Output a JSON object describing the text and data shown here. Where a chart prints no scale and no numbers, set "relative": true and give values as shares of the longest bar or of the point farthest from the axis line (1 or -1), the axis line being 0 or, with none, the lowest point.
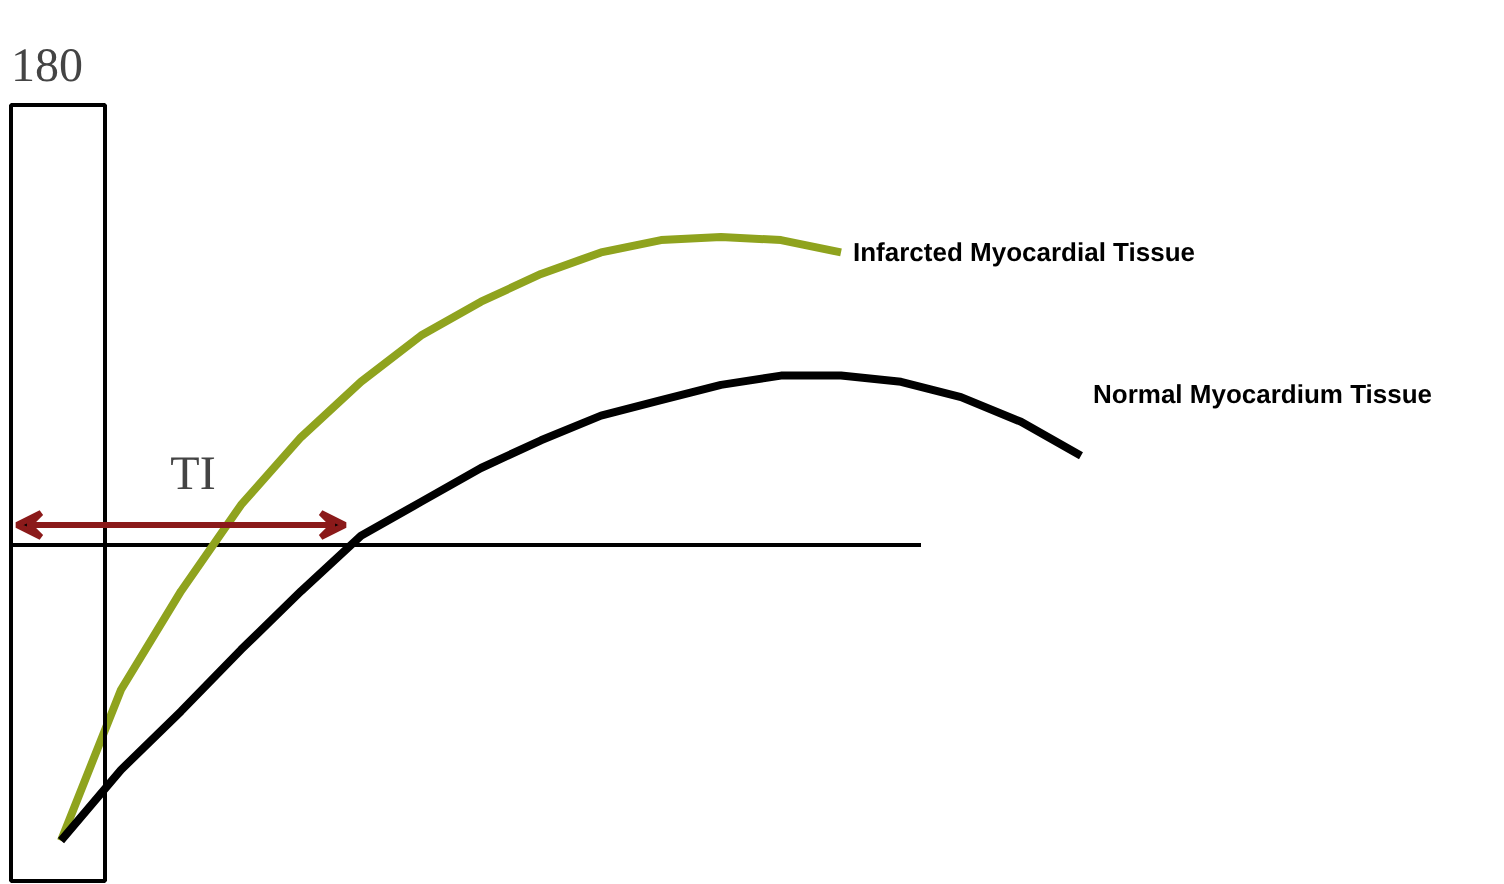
{
  "chart_data": {
    "type": "line",
    "relative": true,
    "categories": [
      null,
      null,
      null,
      null,
      null,
      null,
      null,
      null,
      null,
      null,
      null,
      null,
      null,
      null,
      null,
      null,
      null,
      null
    ],
    "series": [
      {
        "name": "Infarcted Myocardial Tissue",
        "color": "#8fa31e",
        "values": [
          -0.96,
          -0.47,
          -0.15,
          0.13,
          0.35,
          0.53,
          0.68,
          0.79,
          0.88,
          0.95,
          0.99,
          1.0,
          0.99,
          0.95,
          null,
          null,
          null,
          null
        ]
      },
      {
        "name": "Normal Myocardium Tissue",
        "color": "#000000",
        "values": [
          -0.96,
          -0.73,
          -0.54,
          -0.34,
          -0.15,
          0.03,
          0.14,
          0.25,
          0.34,
          0.42,
          0.47,
          0.52,
          0.55,
          0.55,
          0.53,
          0.48,
          0.4,
          0.29
        ]
      }
    ],
    "annotations": [
      "180",
      "TI"
    ],
    "line_style": "solid",
    "marker": "none",
    "grid": false,
    "legend": false
  }
}
